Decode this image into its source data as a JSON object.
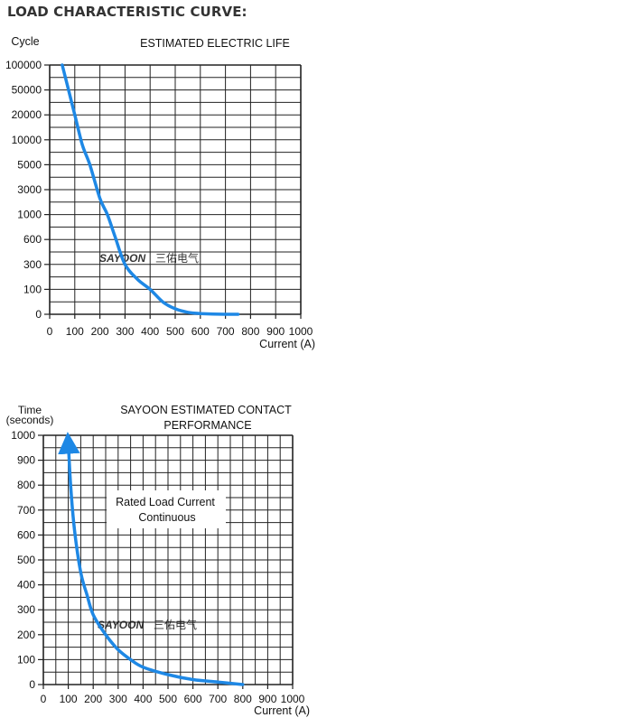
{
  "heading": "LOAD CHARACTERISTIC CURVE:",
  "curve_color": "#1e88e5",
  "grid_color": "#222222",
  "watermark": {
    "brand": "SAYOON",
    "suffix": "三佑电气",
    "color": "#8fb6e0"
  },
  "chart_data": [
    {
      "type": "line",
      "title": "ESTIMATED ELECTRIC LIFE",
      "xlabel": "Current (A)",
      "ylabel": "Cycle",
      "x_ticks": [
        "0",
        "100",
        "200",
        "300",
        "400",
        "500",
        "600",
        "700",
        "800",
        "900",
        "1000"
      ],
      "y_ticks": [
        "0",
        "100",
        "300",
        "600",
        "1000",
        "3000",
        "5000",
        "10000",
        "20000",
        "50000",
        "100000"
      ],
      "xlim": [
        0,
        1000
      ],
      "grid": true,
      "series": [
        {
          "values": [
            [
              50,
              100000
            ],
            [
              70,
              60000
            ],
            [
              100,
              20000
            ],
            [
              130,
              9000
            ],
            [
              160,
              5000
            ],
            [
              200,
              2300
            ],
            [
              230,
              1000
            ],
            [
              260,
              650
            ],
            [
              300,
              300
            ],
            [
              350,
              180
            ],
            [
              400,
              100
            ],
            [
              450,
              50
            ],
            [
              500,
              22
            ],
            [
              550,
              8
            ],
            [
              600,
              3
            ],
            [
              700,
              0
            ],
            [
              750,
              0
            ]
          ]
        }
      ]
    },
    {
      "type": "line",
      "title": "SAYOON ESTIMATED CONTACT PERFORMANCE",
      "xlabel": "Current (A)",
      "ylabel": "Time (seconds)",
      "annotation": "Rated Load Current Continuous",
      "x_ticks": [
        "0",
        "100",
        "200",
        "300",
        "400",
        "500",
        "600",
        "700",
        "800",
        "900",
        "1000"
      ],
      "y_ticks": [
        "0",
        "100",
        "200",
        "300",
        "400",
        "500",
        "600",
        "700",
        "800",
        "900",
        "1000"
      ],
      "xlim": [
        0,
        1000
      ],
      "ylim": [
        0,
        1000
      ],
      "grid": true,
      "series": [
        {
          "values": [
            [
              800,
              0
            ],
            [
              700,
              10
            ],
            [
              600,
              20
            ],
            [
              500,
              40
            ],
            [
              400,
              70
            ],
            [
              350,
              100
            ],
            [
              300,
              140
            ],
            [
              250,
              200
            ],
            [
              200,
              280
            ],
            [
              175,
              360
            ],
            [
              150,
              450
            ],
            [
              125,
              620
            ],
            [
              110,
              790
            ],
            [
              100,
              970
            ]
          ]
        }
      ]
    }
  ]
}
